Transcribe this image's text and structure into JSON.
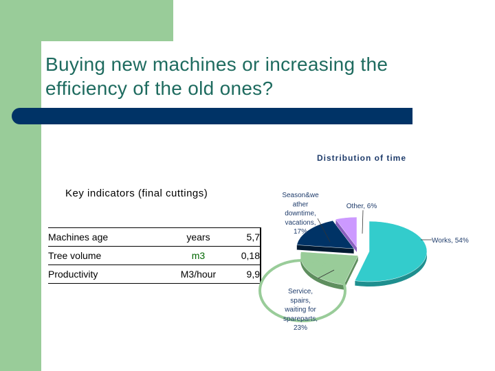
{
  "slide": {
    "title_line1": "Buying new machines or increasing the",
    "title_line2": "efficiency of the old ones?",
    "colors": {
      "title": "#1e6b5f",
      "sidebar": "#99cc99",
      "bar": "#003366"
    }
  },
  "key_indicators": {
    "title": "Key indicators (final cuttings)",
    "rows": [
      {
        "label": "Machines age",
        "unit": "years",
        "value": "5,7"
      },
      {
        "label": "Tree volume",
        "unit": "m3",
        "value": "0,18"
      },
      {
        "label": "Productivity",
        "unit": "M3/hour",
        "value": "9,9"
      }
    ]
  },
  "chart_data": {
    "type": "pie",
    "title": "Distribution of time",
    "slices": [
      {
        "label": "Works",
        "value": 54,
        "display": "Works, 54%",
        "color": "#33cccc",
        "dark": "#1f8f8f"
      },
      {
        "label": "Service, spairs, waiting for spareparts",
        "value": 23,
        "display": [
          "Service,",
          "spairs,",
          "waiting for",
          "spareparts,",
          "23%"
        ],
        "color": "#99cc99",
        "dark": "#5f8f5f"
      },
      {
        "label": "Season&weather downtime, vacations",
        "value": 17,
        "display": [
          "Season&we",
          "ather",
          "downtime,",
          "vacations,",
          "17%"
        ],
        "color": "#003366",
        "dark": "#001a33"
      },
      {
        "label": "Other",
        "value": 6,
        "display": "Other, 6%",
        "color": "#cc99ff",
        "dark": "#8a5fbf"
      }
    ],
    "highlight_color": "#99cc99"
  }
}
